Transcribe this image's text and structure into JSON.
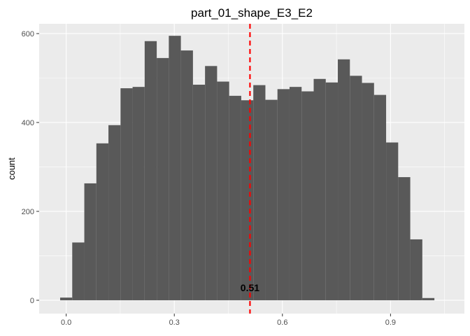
{
  "chart_data": {
    "type": "bar",
    "title": "part_01_shape_E3_E2",
    "xlabel": "",
    "ylabel": "count",
    "xlim": [
      -0.075,
      1.105
    ],
    "ylim": [
      -30,
      622
    ],
    "x_ticks": [
      0.0,
      0.3,
      0.6,
      0.9
    ],
    "x_tick_labels": [
      "0.0",
      "0.3",
      "0.6",
      "0.9"
    ],
    "y_ticks": [
      0,
      200,
      400,
      600
    ],
    "y_tick_labels": [
      "0",
      "200",
      "400",
      "600"
    ],
    "grid": true,
    "legend": "none",
    "bin_width": 0.0335,
    "bin_centers": [
      0.0,
      0.0335,
      0.067,
      0.1005,
      0.134,
      0.1675,
      0.201,
      0.2345,
      0.268,
      0.3015,
      0.335,
      0.3685,
      0.402,
      0.4355,
      0.469,
      0.5025,
      0.536,
      0.5695,
      0.603,
      0.6365,
      0.67,
      0.7035,
      0.737,
      0.7705,
      0.804,
      0.8375,
      0.871,
      0.9045,
      0.938,
      0.9715,
      1.005
    ],
    "values": [
      6,
      130,
      263,
      353,
      394,
      477,
      480,
      583,
      545,
      595,
      562,
      485,
      527,
      492,
      460,
      450,
      484,
      451,
      475,
      480,
      470,
      498,
      490,
      542,
      505,
      489,
      462,
      355,
      277,
      137,
      5
    ],
    "bar_color": "#595959",
    "vline": {
      "x": 0.51,
      "color": "#ff0000",
      "style": "dashed"
    },
    "annotations": [
      {
        "text": "0.51",
        "x": 0.51,
        "y": 28
      }
    ]
  }
}
